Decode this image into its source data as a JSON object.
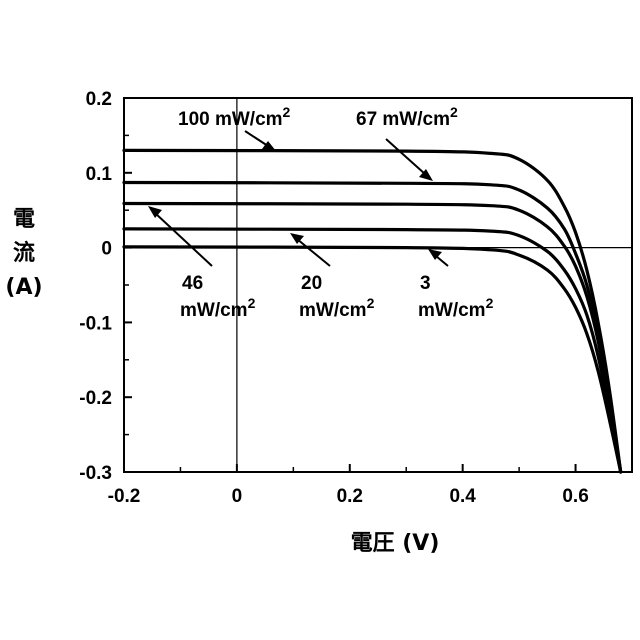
{
  "chart_data": {
    "type": "line",
    "title": "",
    "xlabel": "電圧 (V)",
    "ylabel_chars": [
      "電",
      "流",
      "(A)"
    ],
    "xlim": [
      -0.2,
      0.7
    ],
    "ylim": [
      -0.3,
      0.2
    ],
    "x_ticks": [
      -0.2,
      0,
      0.2,
      0.4,
      0.6
    ],
    "x_tick_labels": [
      "-0.2",
      "0",
      "0.2",
      "0.4",
      "0.6"
    ],
    "y_ticks": [
      0.2,
      0.1,
      0,
      -0.1,
      -0.2,
      -0.3
    ],
    "y_tick_labels": [
      "0.2",
      "0.1",
      "0",
      "-0.1",
      "-0.2",
      "-0.3"
    ],
    "grid": false,
    "series": [
      {
        "name": "100 mW/cm2",
        "label_text": "100 mW/cm",
        "label_sup": "2",
        "x": [
          -0.2,
          0.3,
          0.45,
          0.5,
          0.55,
          0.58,
          0.6,
          0.62,
          0.64,
          0.66,
          0.68
        ],
        "y": [
          0.13,
          0.129,
          0.126,
          0.118,
          0.09,
          0.055,
          0.02,
          -0.03,
          -0.1,
          -0.19,
          -0.3
        ]
      },
      {
        "name": "67 mW/cm2",
        "label_text": "67 mW/cm",
        "label_sup": "2",
        "x": [
          -0.2,
          0.3,
          0.45,
          0.5,
          0.55,
          0.58,
          0.6,
          0.62,
          0.64,
          0.66,
          0.68
        ],
        "y": [
          0.087,
          0.086,
          0.084,
          0.077,
          0.053,
          0.025,
          -0.008,
          -0.05,
          -0.115,
          -0.2,
          -0.3
        ]
      },
      {
        "name": "46 mW/cm2",
        "label_text": "46",
        "label_text2": "mW/cm",
        "label_sup": "2",
        "x": [
          -0.2,
          0.3,
          0.45,
          0.5,
          0.55,
          0.58,
          0.6,
          0.62,
          0.64,
          0.66,
          0.68
        ],
        "y": [
          0.059,
          0.058,
          0.056,
          0.05,
          0.028,
          0.002,
          -0.025,
          -0.065,
          -0.125,
          -0.21,
          -0.3
        ]
      },
      {
        "name": "20 mW/cm2",
        "label_text": "20",
        "label_text2": "mW/cm",
        "label_sup": "2",
        "x": [
          -0.2,
          0.3,
          0.45,
          0.5,
          0.55,
          0.58,
          0.6,
          0.62,
          0.64,
          0.66,
          0.68
        ],
        "y": [
          0.025,
          0.024,
          0.022,
          0.016,
          -0.005,
          -0.03,
          -0.055,
          -0.09,
          -0.145,
          -0.22,
          -0.3
        ]
      },
      {
        "name": "3 mW/cm2",
        "label_text": "3",
        "label_text2": "mW/cm",
        "label_sup": "2",
        "x": [
          -0.2,
          0.3,
          0.45,
          0.5,
          0.55,
          0.58,
          0.6,
          0.62,
          0.64,
          0.66,
          0.68
        ],
        "y": [
          0.001,
          0.0,
          -0.003,
          -0.01,
          -0.03,
          -0.055,
          -0.08,
          -0.115,
          -0.165,
          -0.23,
          -0.3
        ]
      }
    ]
  }
}
